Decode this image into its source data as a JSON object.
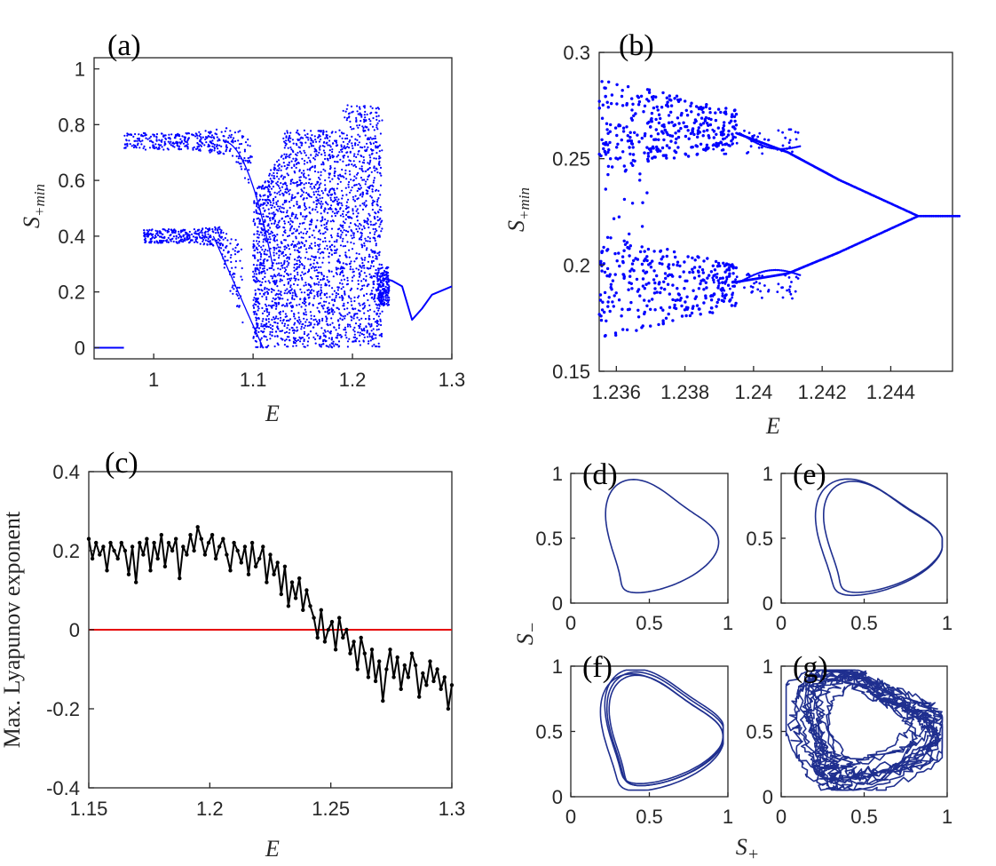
{
  "colors": {
    "scatter": "#0000ff",
    "lyapunov": "#000000",
    "zero_line": "#e60000",
    "phase": "#1f2f8f",
    "axis": "#262626"
  },
  "chart_data": [
    {
      "id": "a",
      "type": "scatter",
      "panel_label": "(a)",
      "xlabel": "E",
      "ylabel": "S",
      "ylabel_sub": "+min",
      "xlim": [
        0.94,
        1.3
      ],
      "ylim": [
        -0.04,
        1.04
      ],
      "xticks": [
        1,
        1.1,
        1.2,
        1.3
      ],
      "xtick_labels": [
        "1",
        "1.1",
        "1.2",
        "1.3"
      ],
      "yticks": [
        0,
        0.2,
        0.4,
        0.6,
        0.8,
        1
      ],
      "ytick_labels": [
        "0",
        "0.2",
        "0.4",
        "0.6",
        "0.8",
        "1"
      ],
      "regions": [
        {
          "name": "fixed-point",
          "x": [
            0.94,
            0.97
          ],
          "y_center": 0.0,
          "spread": 0.0,
          "mode": "line"
        },
        {
          "name": "upper-branch",
          "x": [
            0.97,
            1.1
          ],
          "y_center": 0.74,
          "spread": 0.03,
          "mode": "band"
        },
        {
          "name": "lower-branch",
          "x": [
            0.99,
            1.09
          ],
          "y_center": 0.4,
          "spread": 0.025,
          "mode": "band"
        },
        {
          "name": "chaotic",
          "x": [
            1.1,
            1.23
          ],
          "y_range": [
            0.0,
            0.87
          ],
          "mode": "cloud"
        },
        {
          "name": "periodic-tail",
          "x": [
            1.23,
            1.3
          ],
          "mode": "curve",
          "points": [
            [
              1.23,
              0.25
            ],
            [
              1.24,
              0.24
            ],
            [
              1.25,
              0.22
            ],
            [
              1.26,
              0.1
            ],
            [
              1.27,
              0.14
            ],
            [
              1.28,
              0.19
            ],
            [
              1.3,
              0.22
            ]
          ]
        }
      ]
    },
    {
      "id": "b",
      "type": "scatter",
      "panel_label": "(b)",
      "xlabel": "E",
      "ylabel": "S",
      "ylabel_sub": "+min",
      "xlim": [
        1.2355,
        1.2458
      ],
      "ylim": [
        0.15,
        0.3
      ],
      "xticks": [
        1.236,
        1.238,
        1.24,
        1.242,
        1.244
      ],
      "xtick_labels": [
        "1.236",
        "1.238",
        "1.24",
        "1.242",
        "1.244"
      ],
      "yticks": [
        0.15,
        0.2,
        0.25,
        0.3
      ],
      "ytick_labels": [
        "0.15",
        "0.2",
        "0.25",
        "0.3"
      ],
      "bifurcation_point": [
        1.2448,
        0.223
      ],
      "branches": [
        {
          "name": "upper",
          "points": [
            [
              1.2395,
              0.262
            ],
            [
              1.241,
              0.253
            ],
            [
              1.2425,
              0.24
            ],
            [
              1.2448,
              0.223
            ]
          ]
        },
        {
          "name": "lower",
          "points": [
            [
              1.2395,
              0.192
            ],
            [
              1.241,
              0.196
            ],
            [
              1.2425,
              0.206
            ],
            [
              1.2448,
              0.223
            ]
          ]
        }
      ],
      "chaotic_range": [
        1.2355,
        1.2395
      ]
    },
    {
      "id": "c",
      "type": "line",
      "panel_label": "(c)",
      "xlabel": "E",
      "ylabel": "Max. Lyapunov exponent",
      "xlim": [
        1.15,
        1.3
      ],
      "ylim": [
        -0.4,
        0.4
      ],
      "xticks": [
        1.15,
        1.2,
        1.25,
        1.3
      ],
      "xtick_labels": [
        "1.15",
        "1.2",
        "1.25",
        "1.3"
      ],
      "yticks": [
        -0.4,
        -0.2,
        0,
        0.2,
        0.4
      ],
      "ytick_labels": [
        "-0.4",
        "-0.2",
        "0",
        "0.2",
        "0.4"
      ],
      "reference_line": 0,
      "x": [
        1.15,
        1.1515,
        1.153,
        1.1545,
        1.156,
        1.1575,
        1.159,
        1.1605,
        1.162,
        1.1635,
        1.165,
        1.1665,
        1.168,
        1.1695,
        1.171,
        1.1725,
        1.174,
        1.1755,
        1.177,
        1.1785,
        1.18,
        1.1815,
        1.183,
        1.1845,
        1.186,
        1.1875,
        1.189,
        1.1905,
        1.192,
        1.1935,
        1.195,
        1.1965,
        1.198,
        1.1995,
        1.201,
        1.2025,
        1.204,
        1.2055,
        1.207,
        1.2085,
        1.21,
        1.2115,
        1.213,
        1.2145,
        1.216,
        1.2175,
        1.219,
        1.2205,
        1.222,
        1.2235,
        1.225,
        1.2265,
        1.228,
        1.2295,
        1.231,
        1.2325,
        1.234,
        1.2355,
        1.237,
        1.2385,
        1.24,
        1.2415,
        1.243,
        1.2445,
        1.246,
        1.2475,
        1.249,
        1.2505,
        1.252,
        1.2535,
        1.255,
        1.2565,
        1.258,
        1.2595,
        1.261,
        1.2625,
        1.264,
        1.2655,
        1.267,
        1.2685,
        1.27,
        1.2715,
        1.273,
        1.2745,
        1.276,
        1.2775,
        1.279,
        1.2805,
        1.282,
        1.2835,
        1.285,
        1.2865,
        1.288,
        1.2895,
        1.291,
        1.2925,
        1.294,
        1.2955,
        1.297,
        1.2985,
        1.3
      ],
      "y": [
        0.23,
        0.18,
        0.22,
        0.19,
        0.21,
        0.15,
        0.22,
        0.2,
        0.18,
        0.22,
        0.2,
        0.14,
        0.21,
        0.12,
        0.22,
        0.19,
        0.23,
        0.15,
        0.22,
        0.18,
        0.24,
        0.16,
        0.22,
        0.2,
        0.23,
        0.13,
        0.21,
        0.19,
        0.24,
        0.2,
        0.26,
        0.23,
        0.19,
        0.22,
        0.24,
        0.18,
        0.21,
        0.23,
        0.19,
        0.15,
        0.22,
        0.2,
        0.17,
        0.21,
        0.14,
        0.22,
        0.16,
        0.18,
        0.21,
        0.12,
        0.19,
        0.14,
        0.17,
        0.09,
        0.16,
        0.06,
        0.12,
        0.08,
        0.13,
        0.05,
        0.1,
        0.06,
        0.03,
        -0.02,
        0.05,
        -0.03,
        0.0,
        0.02,
        -0.05,
        0.03,
        -0.02,
        0.0,
        -0.06,
        -0.03,
        -0.1,
        -0.02,
        -0.06,
        -0.12,
        -0.05,
        -0.13,
        -0.08,
        -0.18,
        -0.1,
        -0.05,
        -0.12,
        -0.07,
        -0.15,
        -0.09,
        -0.12,
        -0.06,
        -0.09,
        -0.17,
        -0.11,
        -0.14,
        -0.08,
        -0.13,
        -0.1,
        -0.15,
        -0.12,
        -0.2,
        -0.14
      ]
    },
    {
      "id": "d",
      "type": "line",
      "panel_label": "(d)",
      "xlim": [
        0,
        1
      ],
      "ylim": [
        0,
        1
      ],
      "xtick_labels": [
        "0",
        "0.5",
        "1"
      ],
      "ytick_labels": [
        "0",
        "0.5",
        "1"
      ],
      "loops": 1,
      "spread": 0.0,
      "center": [
        0.53,
        0.5
      ],
      "rx": 0.34,
      "ry": 0.42
    },
    {
      "id": "e",
      "type": "line",
      "panel_label": "(e)",
      "xlim": [
        0,
        1
      ],
      "ylim": [
        0,
        1
      ],
      "xtick_labels": [
        "0",
        "0.5",
        "1"
      ],
      "ytick_labels": [
        "0",
        "0.5",
        "1"
      ],
      "loops": 2,
      "spread": 0.035,
      "center": [
        0.55,
        0.5
      ],
      "rx": 0.35,
      "ry": 0.42
    },
    {
      "id": "f",
      "type": "line",
      "panel_label": "(f)",
      "xlim": [
        0,
        1
      ],
      "ylim": [
        0,
        1
      ],
      "xtick_labels": [
        "0",
        "0.5",
        "1"
      ],
      "ytick_labels": [
        "0",
        "0.5",
        "1"
      ],
      "loops": 4,
      "spread": 0.05,
      "center": [
        0.55,
        0.5
      ],
      "rx": 0.36,
      "ry": 0.42
    },
    {
      "id": "g",
      "type": "line",
      "panel_label": "(g)",
      "xlim": [
        0,
        1
      ],
      "ylim": [
        0,
        1
      ],
      "xtick_labels": [
        "0",
        "0.5",
        "1"
      ],
      "ytick_labels": [
        "0",
        "0.5",
        "1"
      ],
      "loops": 14,
      "spread": 0.18,
      "center": [
        0.52,
        0.52
      ],
      "rx": 0.36,
      "ry": 0.38
    }
  ],
  "shared_labels": {
    "phase_ylabel": "S",
    "phase_ylabel_sub": "−",
    "phase_xlabel": "S",
    "phase_xlabel_sub": "+"
  }
}
